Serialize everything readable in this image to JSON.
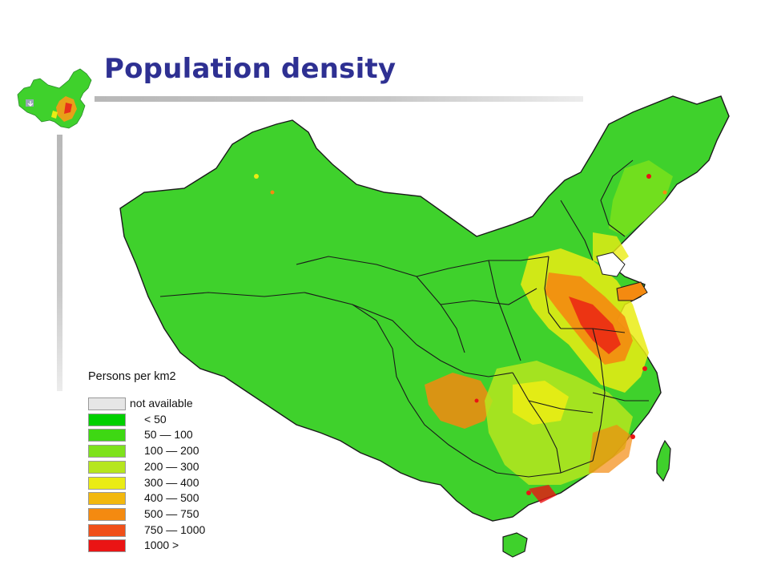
{
  "title": "Population density",
  "legend": {
    "title": "Persons per km2",
    "items": [
      {
        "label": "not available",
        "color": "#e6e6e6"
      },
      {
        "label": "< 50",
        "color": "#00d000"
      },
      {
        "label": "50 — 100",
        "color": "#3ed813"
      },
      {
        "label": "100 — 200",
        "color": "#7ee21c"
      },
      {
        "label": "200 — 300",
        "color": "#b6e61e"
      },
      {
        "label": "300 — 400",
        "color": "#eaec14"
      },
      {
        "label": "400 — 500",
        "color": "#f2b80e"
      },
      {
        "label": "500 — 750",
        "color": "#f48a10"
      },
      {
        "label": "750 — 1000",
        "color": "#f0501a"
      },
      {
        "label": "1000 >",
        "color": "#ea1414"
      }
    ]
  },
  "colors": {
    "title": "#2e3092",
    "land_base": "#3fd12c",
    "boundary": "#1a1a1a",
    "sea": "#ffffff"
  }
}
